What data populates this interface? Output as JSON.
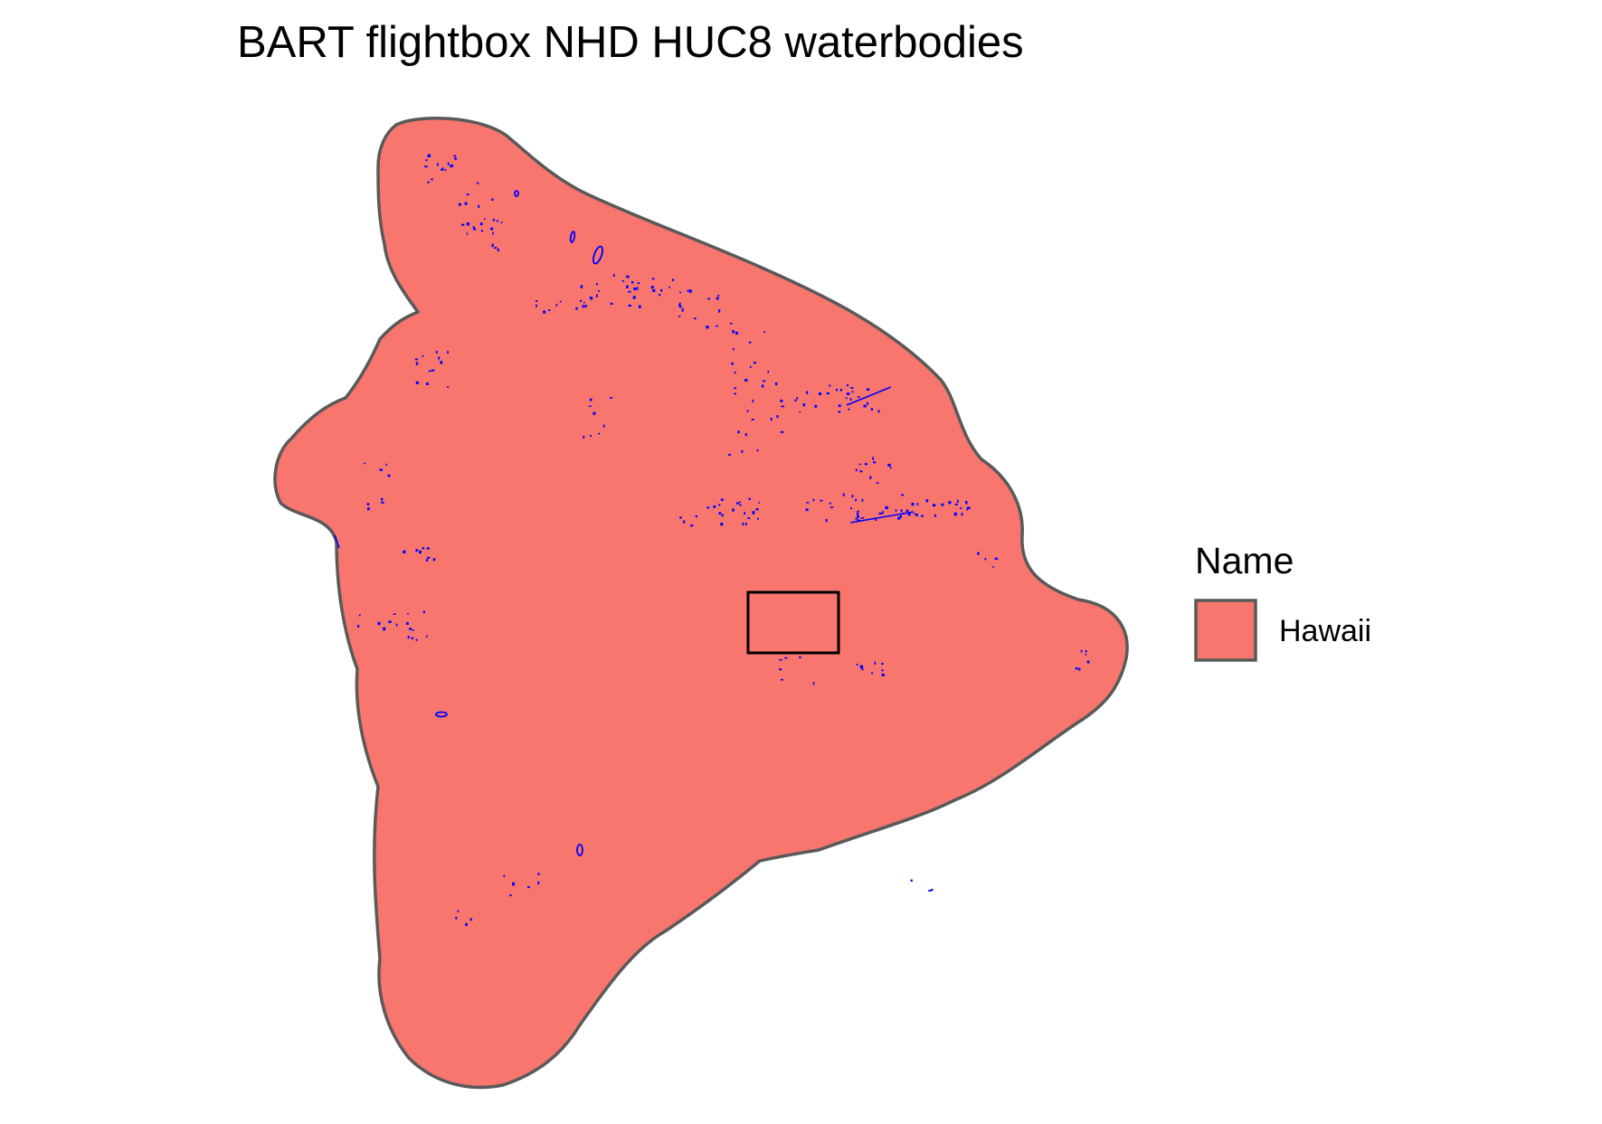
{
  "title": "BART flightbox NHD HUC8 waterbodies",
  "legend": {
    "title": "Name",
    "entries": [
      {
        "label": "Hawaii",
        "fill": "#f8766d",
        "stroke": "#595959"
      }
    ]
  },
  "colors": {
    "island_fill": "#f8766d",
    "island_outline": "#595959",
    "waterbody": "#0000ff",
    "flightbox_outline": "#000000",
    "background": "#ffffff"
  }
}
